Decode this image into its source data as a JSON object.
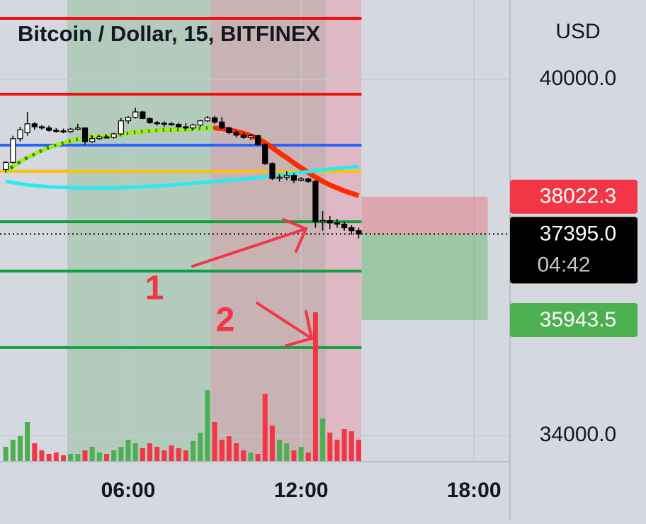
{
  "chart_data": {
    "type": "candlestick",
    "title": "Bitcoin / Dollar, 15, BITFINEX",
    "currency": "USD",
    "x": [
      1.75,
      2,
      2.25,
      2.5,
      2.75,
      3,
      3.25,
      3.5,
      3.75,
      4,
      4.25,
      4.5,
      4.75,
      5,
      5.25,
      5.5,
      5.75,
      6,
      6.25,
      6.5,
      6.75,
      7,
      7.25,
      7.5,
      7.75,
      8,
      8.25,
      8.5,
      8.75,
      9,
      9.25,
      9.5,
      9.75,
      10,
      10.25,
      10.5,
      10.75,
      11,
      11.25,
      11.5,
      11.75,
      12,
      12.25,
      12.5,
      12.75,
      13,
      13.25,
      13.5,
      13.75,
      14
    ],
    "ohlc": [
      [
        38480,
        38620,
        38430,
        38600
      ],
      [
        38600,
        39050,
        38580,
        39000
      ],
      [
        39000,
        39200,
        38950,
        39150
      ],
      [
        39100,
        39450,
        39050,
        39250
      ],
      [
        39250,
        39280,
        39150,
        39200
      ],
      [
        39200,
        39230,
        39150,
        39180
      ],
      [
        39180,
        39220,
        39120,
        39140
      ],
      [
        39140,
        39180,
        39100,
        39130
      ],
      [
        39130,
        39170,
        39090,
        39120
      ],
      [
        39120,
        39180,
        39100,
        39160
      ],
      [
        39160,
        39250,
        39140,
        39180
      ],
      [
        39180,
        39190,
        38900,
        38950
      ],
      [
        38950,
        39050,
        38930,
        39000
      ],
      [
        39000,
        39050,
        38980,
        39030
      ],
      [
        39030,
        39060,
        39000,
        39020
      ],
      [
        39020,
        39100,
        39000,
        39080
      ],
      [
        39080,
        39350,
        39060,
        39300
      ],
      [
        39300,
        39380,
        39250,
        39360
      ],
      [
        39360,
        39520,
        39340,
        39450
      ],
      [
        39450,
        39470,
        39330,
        39340
      ],
      [
        39340,
        39360,
        39250,
        39270
      ],
      [
        39270,
        39300,
        39220,
        39260
      ],
      [
        39260,
        39290,
        39200,
        39250
      ],
      [
        39250,
        39280,
        39220,
        39240
      ],
      [
        39240,
        39270,
        39180,
        39200
      ],
      [
        39200,
        39260,
        39150,
        39180
      ],
      [
        39180,
        39250,
        39150,
        39230
      ],
      [
        39230,
        39320,
        39200,
        39300
      ],
      [
        39300,
        39380,
        39280,
        39350
      ],
      [
        39350,
        39380,
        39250,
        39280
      ],
      [
        39280,
        39360,
        39160,
        39180
      ],
      [
        39180,
        39200,
        39080,
        39100
      ],
      [
        39100,
        39140,
        39020,
        39060
      ],
      [
        39060,
        39100,
        39000,
        39020
      ],
      [
        39020,
        39080,
        38980,
        39050
      ],
      [
        39050,
        39060,
        38880,
        38900
      ],
      [
        38900,
        38920,
        38560,
        38580
      ],
      [
        38580,
        38600,
        38300,
        38330
      ],
      [
        38330,
        38400,
        38280,
        38350
      ],
      [
        38350,
        38450,
        38300,
        38380
      ],
      [
        38380,
        38420,
        38250,
        38300
      ],
      [
        38300,
        38350,
        38280,
        38320
      ],
      [
        38320,
        38340,
        38260,
        38280
      ],
      [
        38280,
        38300,
        37500,
        37600
      ],
      [
        37600,
        37780,
        37450,
        37620
      ],
      [
        37620,
        37700,
        37480,
        37580
      ],
      [
        37580,
        37650,
        37500,
        37560
      ],
      [
        37560,
        37600,
        37450,
        37500
      ],
      [
        37500,
        37540,
        37380,
        37450
      ],
      [
        37450,
        37500,
        37320,
        37395
      ]
    ],
    "volume": [
      20,
      30,
      35,
      55,
      25,
      15,
      10,
      12,
      8,
      10,
      10,
      15,
      20,
      12,
      10,
      15,
      20,
      30,
      25,
      18,
      25,
      20,
      15,
      22,
      18,
      15,
      28,
      40,
      100,
      55,
      30,
      35,
      25,
      15,
      12,
      10,
      95,
      50,
      30,
      25,
      15,
      20,
      12,
      210,
      60,
      40,
      30,
      45,
      42,
      30
    ],
    "curves": [
      {
        "color": "#1b8a1b",
        "dash_color": "#a6f000",
        "falling_color": "#ff2a00",
        "values": [
          38450,
          38530,
          38610,
          38680,
          38740,
          38800,
          38850,
          38890,
          38930,
          38960,
          38990,
          39010,
          39030,
          39040,
          39050,
          39060,
          39070,
          39090,
          39110,
          39120,
          39130,
          39140,
          39150,
          39150,
          39150,
          39160,
          39160,
          39170,
          39180,
          39180,
          39170,
          39150,
          39120,
          39090,
          39050,
          39000,
          38930,
          38850,
          38760,
          38680,
          38590,
          38510,
          38430,
          38350,
          38280,
          38220,
          38170,
          38120,
          38080,
          38040
        ]
      },
      {
        "color": "#2ee8f0",
        "values": [
          38280,
          38260,
          38240,
          38220,
          38210,
          38200,
          38190,
          38185,
          38180,
          38175,
          38170,
          38170,
          38170,
          38170,
          38170,
          38170,
          38175,
          38180,
          38185,
          38190,
          38195,
          38200,
          38210,
          38220,
          38230,
          38240,
          38250,
          38260,
          38270,
          38280,
          38290,
          38300,
          38310,
          38320,
          38330,
          38340,
          38355,
          38370,
          38385,
          38400,
          38415,
          38430,
          38445,
          38460,
          38475,
          38490,
          38500,
          38510,
          38520,
          38530
        ]
      }
    ],
    "levels": [
      {
        "value": 41026,
        "color": "#f01010"
      },
      {
        "value": 39750,
        "color": "#f01010"
      },
      {
        "value": 38890,
        "color": "#2962ff"
      },
      {
        "value": 38450,
        "color": "#ffc107"
      },
      {
        "value": 37600,
        "color": "#10a040"
      },
      {
        "value": 36770,
        "color": "#10a040"
      },
      {
        "value": 35480,
        "color": "#10a040"
      }
    ],
    "price_labels": [
      {
        "value": 38022.3,
        "label": "38022.3",
        "color": "#f23645"
      },
      {
        "value": 37395.0,
        "label": "37395.0",
        "color": "#000000",
        "countdown": "04:42"
      },
      {
        "value": 35943.5,
        "label": "35943.5",
        "color": "#4caf50"
      }
    ],
    "annotations": [
      "1",
      "2"
    ],
    "xlim": [
      1.55,
      19.25
    ],
    "ylim": [
      33558,
      41336
    ],
    "xticks": [
      {
        "value": 6,
        "label": "06:00"
      },
      {
        "value": 12,
        "label": "12:00"
      },
      {
        "value": 18,
        "label": "18:00"
      }
    ],
    "yticks": [
      {
        "value": 40000,
        "label": "40000.0"
      },
      {
        "value": 34000,
        "label": "34000.0"
      }
    ],
    "up_color": "#4caf50",
    "down_color": "#f23645"
  }
}
